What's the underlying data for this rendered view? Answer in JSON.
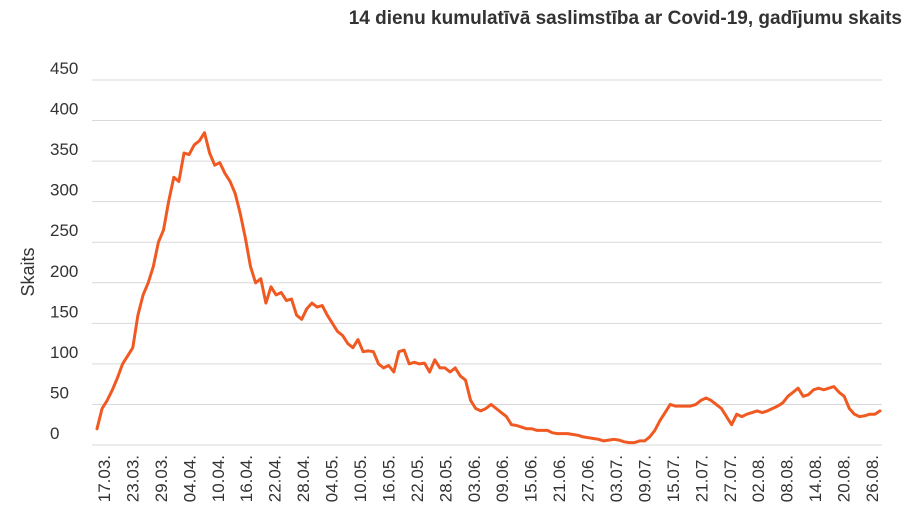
{
  "chart_data": {
    "type": "line",
    "title": "14 dienu kumulatīvā saslimstība ar Covid-19, gadījumu skaits",
    "ylabel": "Skaits",
    "xlabel": "",
    "ylim": [
      0,
      450
    ],
    "yticks": [
      0,
      50,
      100,
      150,
      200,
      250,
      300,
      350,
      400,
      450
    ],
    "grid": true,
    "legend": "none",
    "line_color": "#f05a22",
    "xtick_labels": [
      "17.03.",
      "23.03.",
      "29.03.",
      "04.04.",
      "10.04.",
      "16.04.",
      "22.04.",
      "28.04.",
      "04.05.",
      "10.05.",
      "16.05.",
      "22.05.",
      "28.05.",
      "03.06.",
      "09.06.",
      "15.06.",
      "21.06.",
      "27.06.",
      "03.07.",
      "09.07.",
      "15.07.",
      "21.07.",
      "27.07.",
      "02.08.",
      "08.08.",
      "14.08.",
      "20.08.",
      "26.08."
    ],
    "series": [
      {
        "values": [
          20,
          45,
          55,
          68,
          83,
          100,
          110,
          120,
          160,
          185,
          200,
          220,
          250,
          265,
          300,
          330,
          325,
          360,
          358,
          370,
          375,
          385,
          360,
          345,
          348,
          335,
          325,
          310,
          285,
          255,
          220,
          200,
          205,
          175,
          195,
          185,
          188,
          178,
          180,
          160,
          155,
          168,
          175,
          170,
          172,
          160,
          150,
          140,
          135,
          125,
          120,
          130,
          115,
          116,
          115,
          100,
          95,
          98,
          90,
          115,
          117,
          100,
          102,
          100,
          101,
          90,
          105,
          95,
          95,
          90,
          95,
          85,
          80,
          55,
          45,
          42,
          45,
          50,
          45,
          40,
          35,
          25,
          24,
          22,
          20,
          20,
          18,
          18,
          18,
          15,
          14,
          14,
          14,
          13,
          12,
          10,
          9,
          8,
          7,
          5,
          6,
          7,
          6,
          4,
          3,
          3,
          5,
          5,
          10,
          18,
          30,
          40,
          50,
          48,
          48,
          48,
          48,
          50,
          55,
          58,
          55,
          50,
          45,
          35,
          25,
          38,
          35,
          38,
          40,
          42,
          40,
          42,
          45,
          48,
          52,
          60,
          65,
          70,
          60,
          62,
          68,
          70,
          68,
          70,
          72,
          65,
          60,
          45,
          38,
          35,
          36,
          38,
          38,
          42
        ]
      }
    ]
  }
}
